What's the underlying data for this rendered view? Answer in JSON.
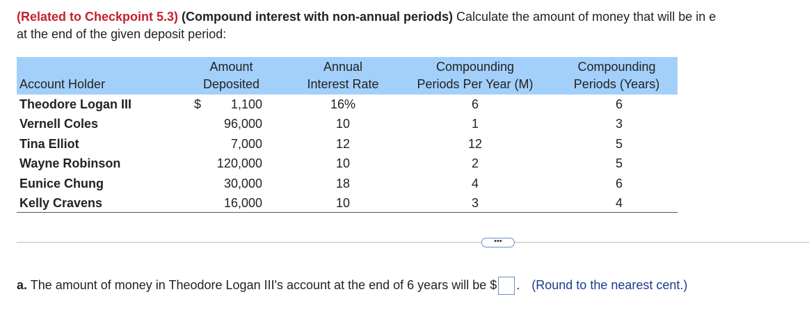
{
  "header": {
    "reference": "(Related to Checkpoint 5.3)",
    "topic": "(Compound interest with non-annual periods)",
    "line1": "Calculate the amount of money that will be in e",
    "line2": "at the end of the given deposit period:"
  },
  "table": {
    "columns": [
      {
        "line1": "Account Holder"
      },
      {
        "line1": "Amount",
        "line2": "Deposited"
      },
      {
        "line1": "Annual",
        "line2": "Interest Rate"
      },
      {
        "line1": "Compounding",
        "line2": "Periods Per Year (M)"
      },
      {
        "line1": "Compounding",
        "line2": "Periods (Years)"
      }
    ],
    "rows": [
      {
        "holder": "Theodore Logan III",
        "currency": "$",
        "amount": "1,100",
        "rate": "16%",
        "periods_per_year": "6",
        "years": "6"
      },
      {
        "holder": "Vernell Coles",
        "amount": "96,000",
        "rate": "10",
        "periods_per_year": "1",
        "years": "3"
      },
      {
        "holder": "Tina Elliot",
        "amount": "7,000",
        "rate": "12",
        "periods_per_year": "12",
        "years": "5"
      },
      {
        "holder": "Wayne Robinson",
        "amount": "120,000",
        "rate": "10",
        "periods_per_year": "2",
        "years": "5"
      },
      {
        "holder": "Eunice Chung",
        "amount": "30,000",
        "rate": "18",
        "periods_per_year": "4",
        "years": "6"
      },
      {
        "holder": "Kelly Cravens",
        "amount": "16,000",
        "rate": "10",
        "periods_per_year": "3",
        "years": "4"
      }
    ]
  },
  "question": {
    "label": "a.",
    "text": "The amount of money in Theodore Logan III's account at the end of 6 years will be $",
    "suffix": ".",
    "hint": "(Round to the nearest cent.)"
  }
}
